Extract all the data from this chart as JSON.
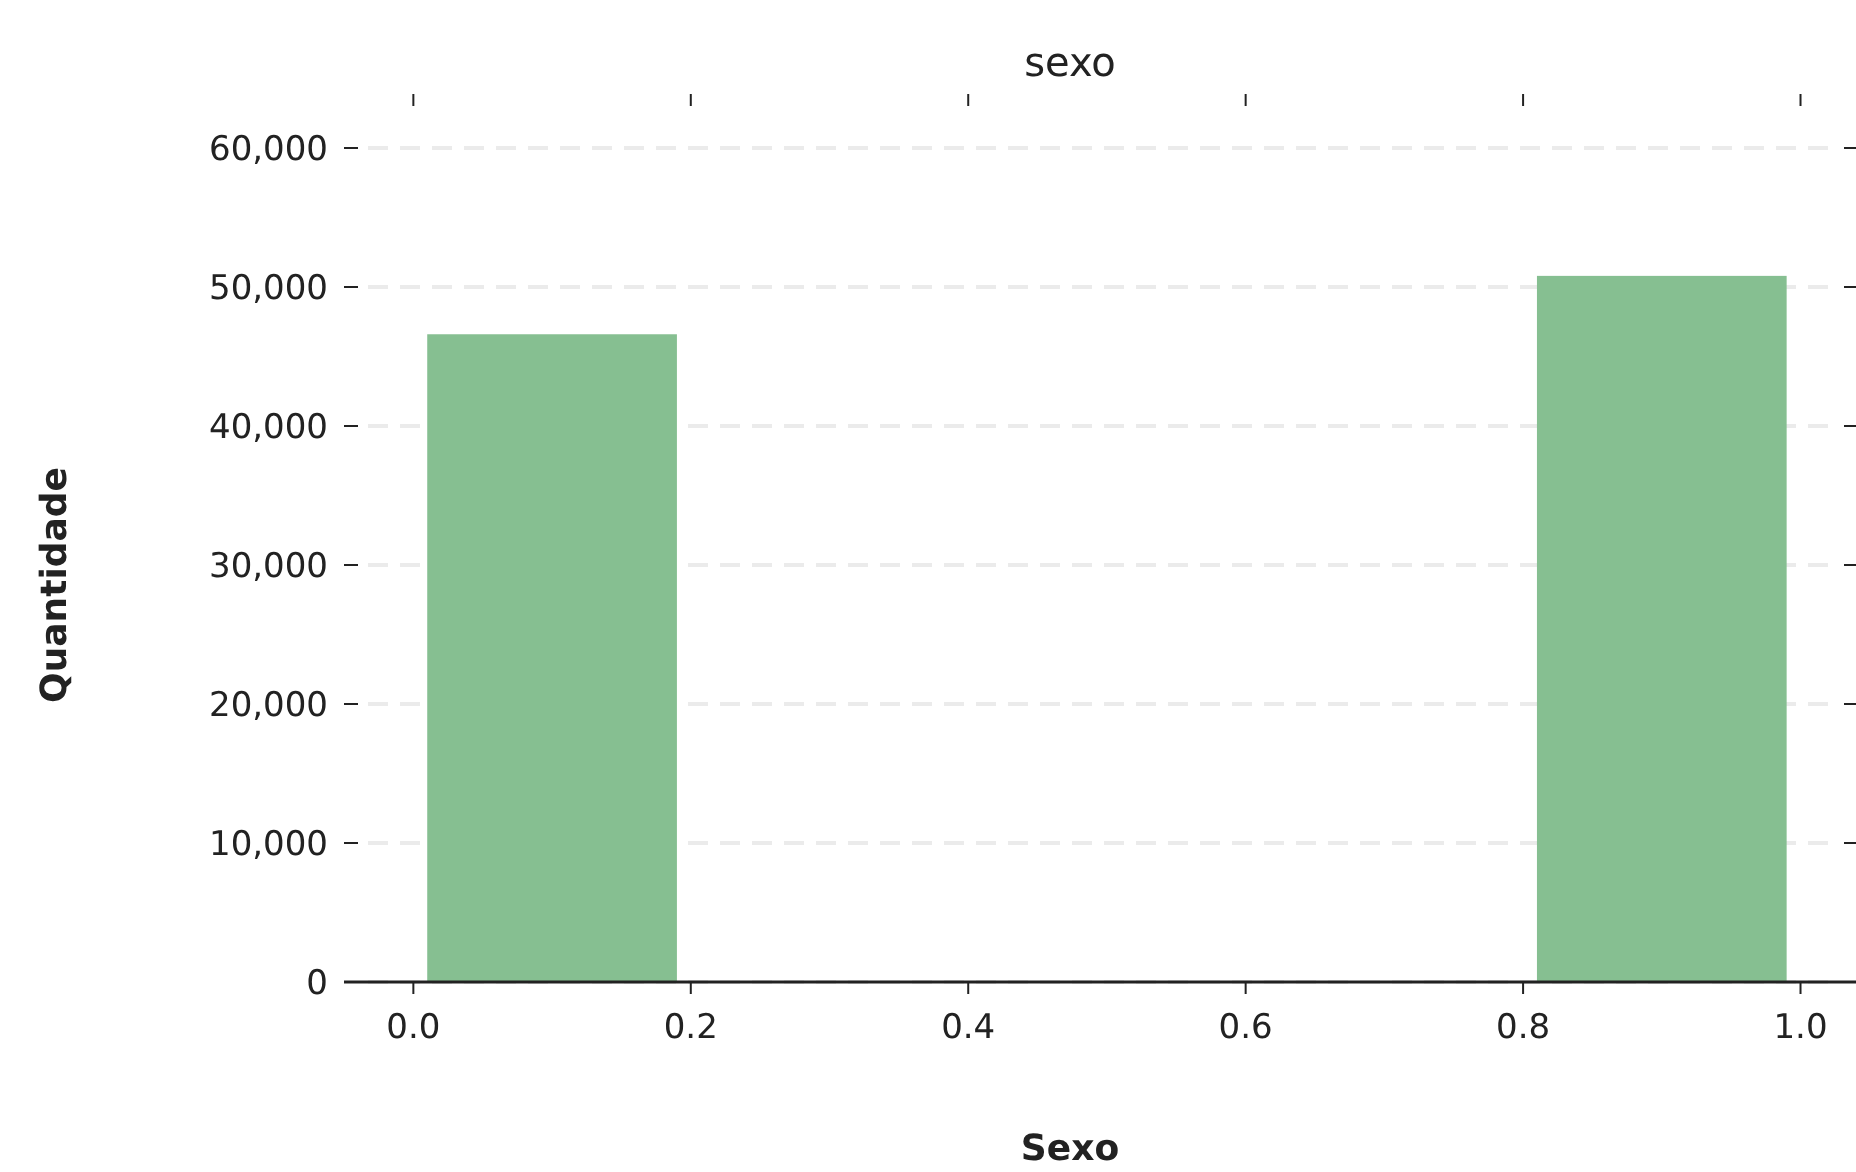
{
  "chart_data": {
    "type": "histogram",
    "title": "sexo",
    "xlabel": "Sexo",
    "ylabel": "Quantidade",
    "bins": [
      0,
      0.2,
      0.4,
      0.6,
      0.8,
      1.0
    ],
    "values": [
      46600,
      0,
      0,
      0,
      50800
    ],
    "color": "#86bf91",
    "xlim": [
      -0.05,
      1.04
    ],
    "xticks": [
      {
        "value": 0,
        "label": "0.0"
      },
      0.2,
      0.4,
      0.6,
      0.8,
      {
        "value": 1,
        "label": "1.0"
      }
    ],
    "ylim": [
      0,
      60000
    ],
    "yticks": [
      {
        "value": 0,
        "label": "0"
      },
      {
        "value": 10000,
        "label": "10,000"
      },
      {
        "value": 20000,
        "label": "20,000"
      },
      {
        "value": 30000,
        "label": "30,000"
      },
      {
        "value": 40000,
        "label": "40,000"
      },
      {
        "value": 50000,
        "label": "50,000"
      },
      {
        "value": 60000,
        "label": "60,000"
      }
    ],
    "grid": "y"
  }
}
